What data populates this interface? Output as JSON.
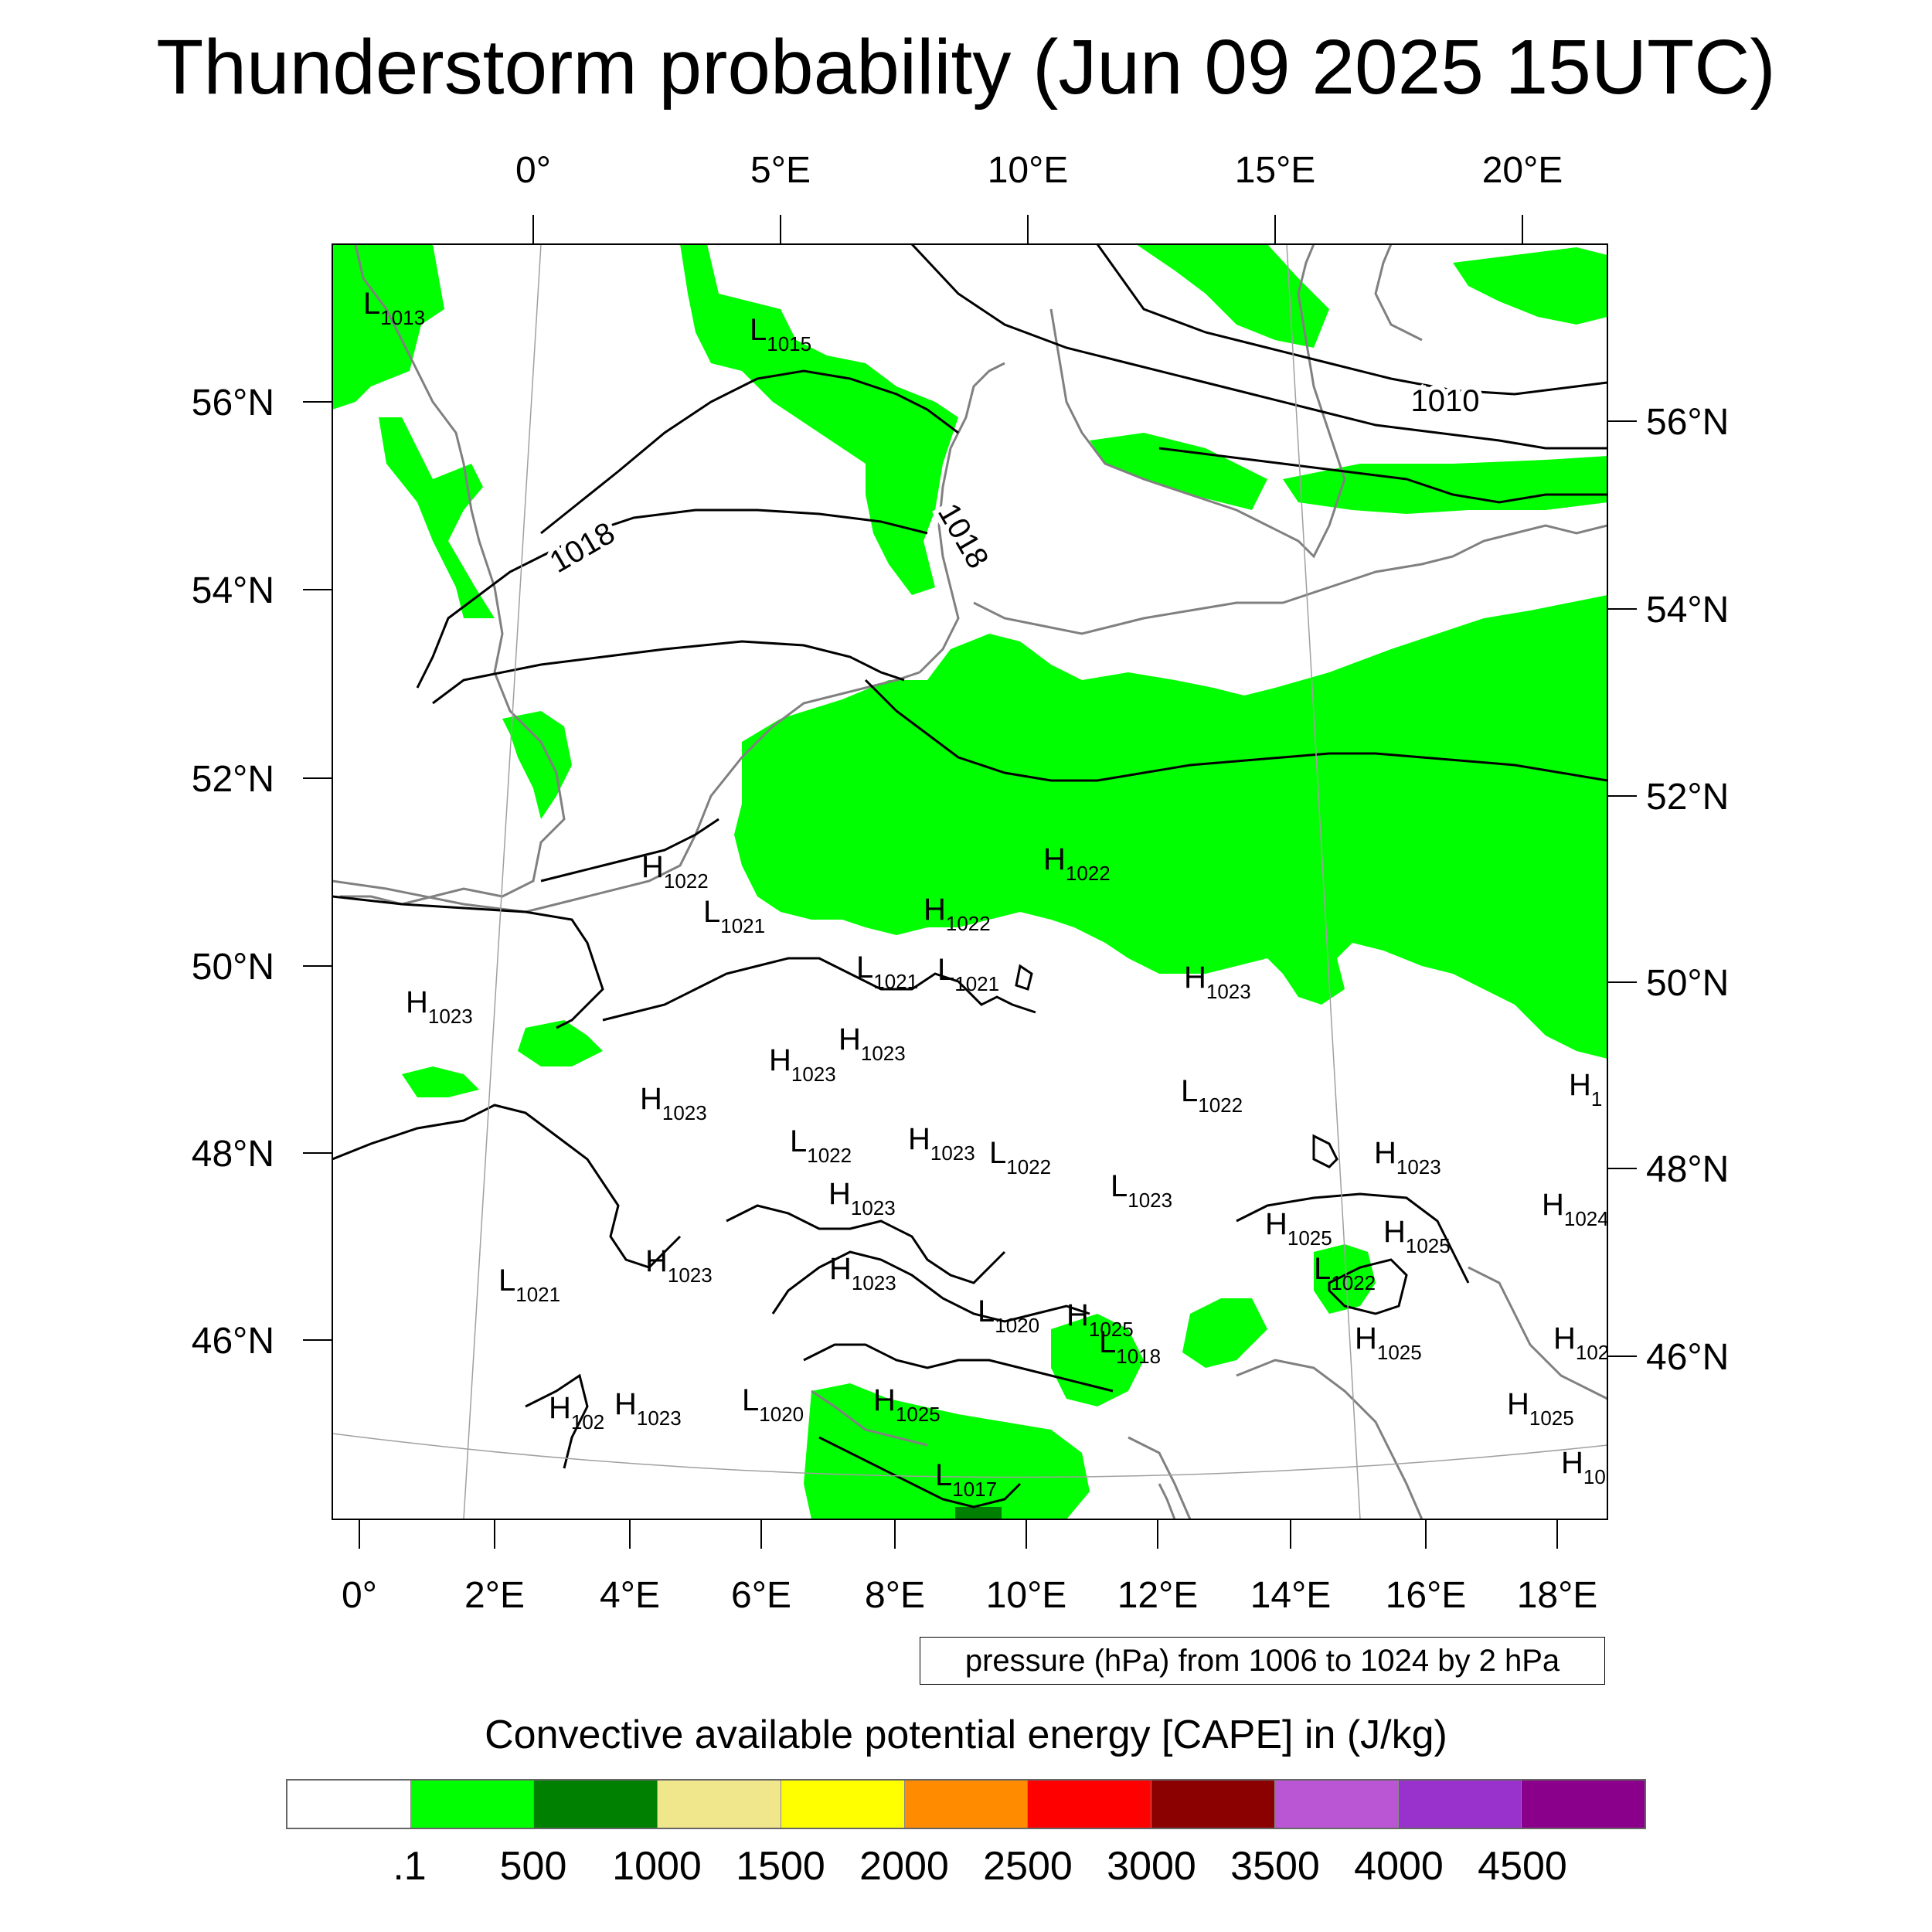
{
  "title": "Thunderstorm probability (Jun 09 2025 15UTC)",
  "axes": {
    "top_lon_labels": [
      "0°",
      "5°E",
      "10°E",
      "15°E",
      "20°E"
    ],
    "bottom_lon_labels": [
      "0°",
      "2°E",
      "4°E",
      "6°E",
      "8°E",
      "10°E",
      "12°E",
      "14°E",
      "16°E",
      "18°E"
    ],
    "left_lat_labels": [
      "56°N",
      "54°N",
      "52°N",
      "50°N",
      "48°N",
      "46°N"
    ],
    "right_lat_labels": [
      "56°N",
      "54°N",
      "52°N",
      "50°N",
      "48°N",
      "46°N"
    ]
  },
  "isobar_labels": [
    "1010",
    "1018",
    "1018"
  ],
  "pressure_centers": [
    {
      "type": "L",
      "value": "1013"
    },
    {
      "type": "L",
      "value": "1015"
    },
    {
      "type": "H",
      "value": "1022"
    },
    {
      "type": "H",
      "value": "1022"
    },
    {
      "type": "L",
      "value": "1021"
    },
    {
      "type": "H",
      "value": "1022"
    },
    {
      "type": "L",
      "value": "1021"
    },
    {
      "type": "L",
      "value": "1021"
    },
    {
      "type": "H",
      "value": "1023"
    },
    {
      "type": "H",
      "value": "1023"
    },
    {
      "type": "H",
      "value": "1023"
    },
    {
      "type": "H",
      "value": "1023"
    },
    {
      "type": "H",
      "value": "1023"
    },
    {
      "type": "L",
      "value": "1022"
    },
    {
      "type": "L",
      "value": "1022"
    },
    {
      "type": "H",
      "value": "1023"
    },
    {
      "type": "H",
      "value": "1023"
    },
    {
      "type": "L",
      "value": "1022"
    },
    {
      "type": "H",
      "value": "1023"
    },
    {
      "type": "L",
      "value": "1023"
    },
    {
      "type": "H",
      "value": "1025"
    },
    {
      "type": "H",
      "value": "1025"
    },
    {
      "type": "H",
      "value": "1024"
    },
    {
      "type": "H",
      "value": "1023"
    },
    {
      "type": "L",
      "value": "1022"
    },
    {
      "type": "H",
      "value": "1023"
    },
    {
      "type": "L",
      "value": "1021"
    },
    {
      "type": "L",
      "value": "1020"
    },
    {
      "type": "H",
      "value": "1025"
    },
    {
      "type": "L",
      "value": "1018"
    },
    {
      "type": "H",
      "value": "1025"
    },
    {
      "type": "H",
      "value": "102"
    },
    {
      "type": "H",
      "value": "102"
    },
    {
      "type": "H",
      "value": "1023"
    },
    {
      "type": "L",
      "value": "1020"
    },
    {
      "type": "H",
      "value": "1025"
    },
    {
      "type": "H",
      "value": "1025"
    },
    {
      "type": "L",
      "value": "1017"
    },
    {
      "type": "H",
      "value": "10"
    },
    {
      "type": "H",
      "value": "1"
    }
  ],
  "pressure_note": "pressure (hPa) from 1006 to 1024 by 2 hPa",
  "colorbar": {
    "title": "Convective available potential energy [CAPE] in (J/kg)",
    "colors": [
      "#ffffff",
      "#00ff00",
      "#008000",
      "#f0e68c",
      "#ffff00",
      "#ff8c00",
      "#ff0000",
      "#8b0000",
      "#ba55d3",
      "#9932cc",
      "#8b008b"
    ],
    "labels": [
      ".1",
      "500",
      "1000",
      "1500",
      "2000",
      "2500",
      "3000",
      "3500",
      "4000",
      "4500"
    ]
  },
  "colors": {
    "cape_green": "#00ff00",
    "cape_dark_green": "#008000",
    "coastline": "#808080",
    "isobar": "#000000"
  }
}
